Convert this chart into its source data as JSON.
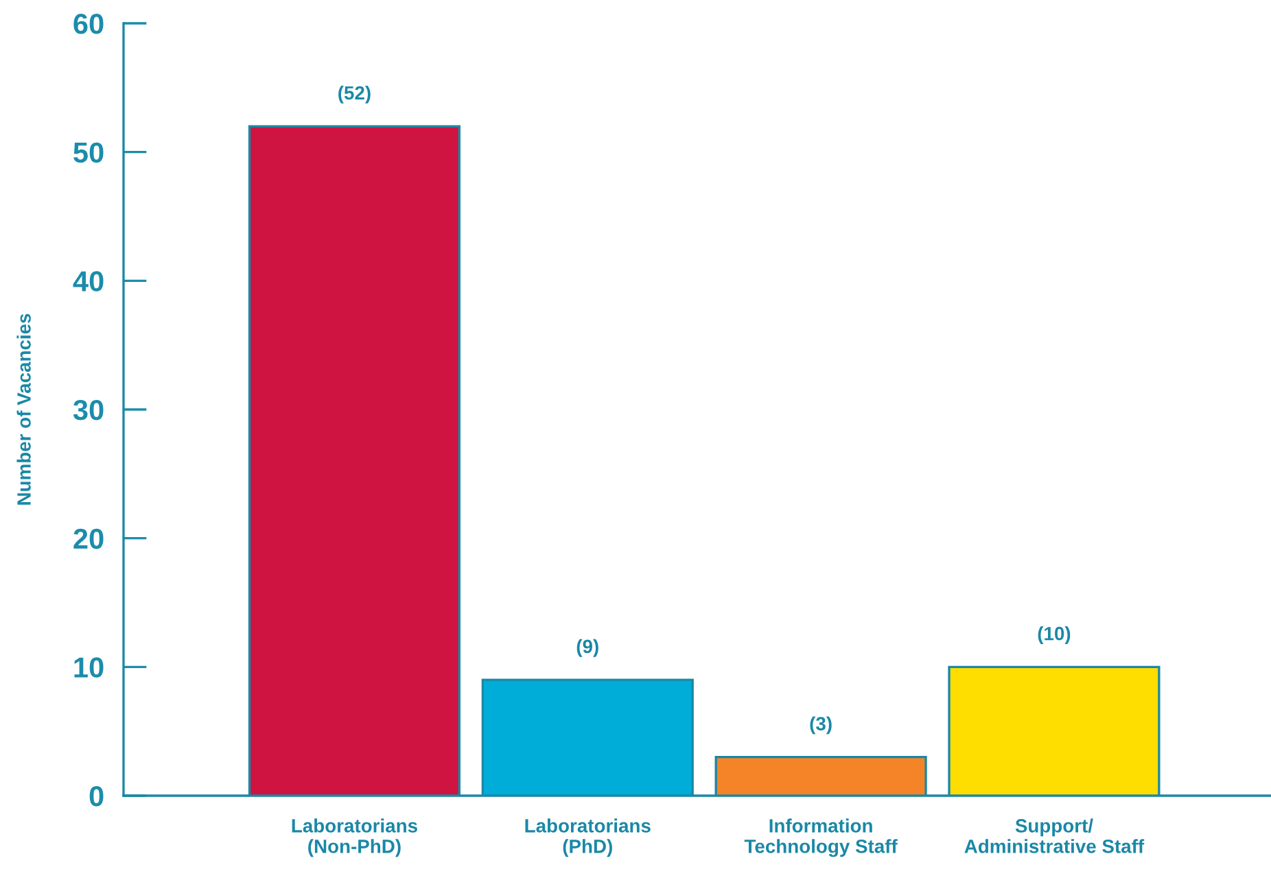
{
  "chart_data": {
    "type": "bar",
    "ylabel": "Number of Vacancies",
    "categories": [
      "Laboratorians\n(Non-PhD)",
      "Laboratorians\n(PhD)",
      "Information\nTechnology Staff",
      "Support/\nAdministrative Staff"
    ],
    "values": [
      52,
      9,
      3,
      10
    ],
    "colors": [
      "#cf1441",
      "#00acd8",
      "#f48427",
      "#fedd00"
    ],
    "value_labels": [
      "(52)",
      "(9)",
      "(3)",
      "(10)"
    ],
    "ylim": [
      0,
      60
    ],
    "yticks": [
      0,
      10,
      20,
      30,
      40,
      50,
      60
    ],
    "grid": false,
    "legend": false
  }
}
